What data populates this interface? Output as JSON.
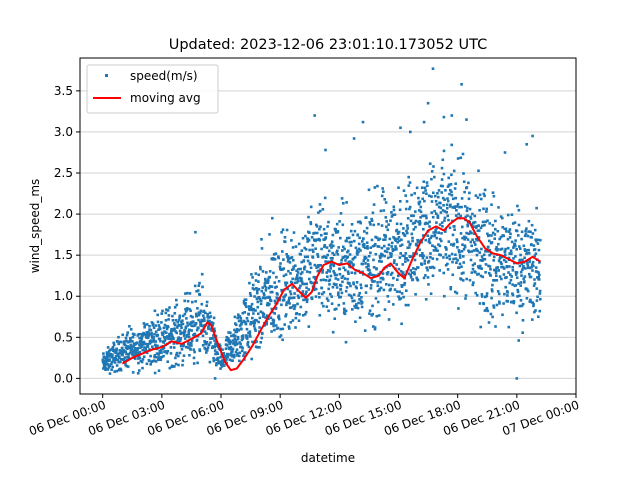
{
  "chart_data": {
    "type": "scatter",
    "title": "Updated: 2023-12-06 23:01:10.173052 UTC",
    "xlabel": "datetime",
    "ylabel": "wind_speed_ms",
    "x_unit": "hours since 06 Dec 00:00",
    "xlim": [
      -1.15,
      24.0
    ],
    "ylim": [
      -0.19,
      3.9
    ],
    "grid": "horizontal",
    "legend_position": "top-left",
    "x_ticks": [
      {
        "value": 0,
        "label": "06 Dec 00:00"
      },
      {
        "value": 3,
        "label": "06 Dec 03:00"
      },
      {
        "value": 6,
        "label": "06 Dec 06:00"
      },
      {
        "value": 9,
        "label": "06 Dec 09:00"
      },
      {
        "value": 12,
        "label": "06 Dec 12:00"
      },
      {
        "value": 15,
        "label": "06 Dec 15:00"
      },
      {
        "value": 18,
        "label": "06 Dec 18:00"
      },
      {
        "value": 21,
        "label": "06 Dec 21:00"
      },
      {
        "value": 24,
        "label": "07 Dec 00:00"
      }
    ],
    "y_ticks": [
      {
        "value": 0.0,
        "label": "0.0"
      },
      {
        "value": 0.5,
        "label": "0.5"
      },
      {
        "value": 1.0,
        "label": "1.0"
      },
      {
        "value": 1.5,
        "label": "1.5"
      },
      {
        "value": 2.0,
        "label": "2.0"
      },
      {
        "value": 2.5,
        "label": "2.5"
      },
      {
        "value": 3.0,
        "label": "3.0"
      },
      {
        "value": 3.5,
        "label": "3.5"
      }
    ],
    "series": [
      {
        "name": "speed(m/s)",
        "kind": "scatter",
        "color": "#1f77b4",
        "envelope": [
          [
            0.0,
            0.0,
            0.35
          ],
          [
            1.0,
            0.0,
            0.65
          ],
          [
            2.0,
            0.0,
            0.8
          ],
          [
            3.0,
            0.0,
            1.0
          ],
          [
            4.0,
            0.0,
            1.1
          ],
          [
            5.0,
            0.0,
            1.4
          ],
          [
            5.6,
            0.0,
            0.9
          ],
          [
            6.0,
            0.0,
            0.4
          ],
          [
            7.0,
            0.0,
            1.1
          ],
          [
            8.0,
            0.0,
            1.8
          ],
          [
            9.0,
            0.2,
            2.0
          ],
          [
            10.0,
            0.3,
            2.2
          ],
          [
            11.0,
            0.4,
            2.5
          ],
          [
            12.0,
            0.3,
            2.4
          ],
          [
            13.0,
            0.3,
            2.4
          ],
          [
            14.0,
            0.3,
            2.6
          ],
          [
            15.0,
            0.5,
            2.6
          ],
          [
            16.0,
            0.7,
            2.9
          ],
          [
            17.0,
            0.7,
            3.0
          ],
          [
            18.0,
            0.6,
            3.0
          ],
          [
            19.0,
            0.4,
            2.8
          ],
          [
            20.0,
            0.3,
            2.5
          ],
          [
            21.0,
            0.3,
            2.5
          ],
          [
            22.2,
            0.4,
            2.2
          ]
        ],
        "outliers": [
          [
            4.7,
            1.78
          ],
          [
            8.6,
            1.95
          ],
          [
            10.75,
            3.2
          ],
          [
            11.3,
            2.78
          ],
          [
            12.75,
            2.92
          ],
          [
            13.2,
            3.12
          ],
          [
            15.1,
            3.05
          ],
          [
            15.6,
            3.0
          ],
          [
            16.3,
            3.12
          ],
          [
            16.5,
            3.35
          ],
          [
            16.75,
            3.77
          ],
          [
            17.3,
            3.18
          ],
          [
            17.7,
            3.2
          ],
          [
            18.2,
            3.58
          ],
          [
            18.45,
            3.15
          ],
          [
            20.4,
            2.75
          ],
          [
            21.5,
            2.85
          ],
          [
            21.8,
            2.95
          ],
          [
            21.0,
            0.0
          ],
          [
            5.7,
            0.0
          ]
        ]
      },
      {
        "name": "moving avg",
        "kind": "line",
        "color": "#ff0000",
        "points": [
          [
            1.0,
            0.18
          ],
          [
            1.5,
            0.25
          ],
          [
            2.0,
            0.3
          ],
          [
            2.5,
            0.35
          ],
          [
            3.0,
            0.38
          ],
          [
            3.5,
            0.45
          ],
          [
            4.0,
            0.42
          ],
          [
            4.5,
            0.48
          ],
          [
            5.0,
            0.55
          ],
          [
            5.3,
            0.68
          ],
          [
            5.5,
            0.65
          ],
          [
            5.8,
            0.45
          ],
          [
            6.2,
            0.2
          ],
          [
            6.5,
            0.1
          ],
          [
            6.8,
            0.12
          ],
          [
            7.2,
            0.25
          ],
          [
            7.6,
            0.4
          ],
          [
            8.0,
            0.58
          ],
          [
            8.4,
            0.75
          ],
          [
            8.8,
            0.9
          ],
          [
            9.2,
            1.08
          ],
          [
            9.6,
            1.15
          ],
          [
            10.0,
            1.05
          ],
          [
            10.3,
            0.98
          ],
          [
            10.6,
            1.05
          ],
          [
            10.9,
            1.25
          ],
          [
            11.2,
            1.38
          ],
          [
            11.6,
            1.42
          ],
          [
            12.0,
            1.38
          ],
          [
            12.4,
            1.4
          ],
          [
            12.8,
            1.32
          ],
          [
            13.2,
            1.28
          ],
          [
            13.6,
            1.22
          ],
          [
            14.0,
            1.25
          ],
          [
            14.3,
            1.35
          ],
          [
            14.6,
            1.4
          ],
          [
            15.0,
            1.28
          ],
          [
            15.3,
            1.22
          ],
          [
            15.7,
            1.45
          ],
          [
            16.1,
            1.65
          ],
          [
            16.5,
            1.8
          ],
          [
            16.9,
            1.85
          ],
          [
            17.3,
            1.8
          ],
          [
            17.6,
            1.88
          ],
          [
            18.0,
            1.95
          ],
          [
            18.3,
            1.95
          ],
          [
            18.6,
            1.9
          ],
          [
            19.0,
            1.72
          ],
          [
            19.4,
            1.58
          ],
          [
            19.8,
            1.52
          ],
          [
            20.2,
            1.5
          ],
          [
            20.6,
            1.45
          ],
          [
            21.0,
            1.4
          ],
          [
            21.4,
            1.42
          ],
          [
            21.8,
            1.48
          ],
          [
            22.0,
            1.45
          ],
          [
            22.2,
            1.42
          ]
        ]
      }
    ]
  }
}
